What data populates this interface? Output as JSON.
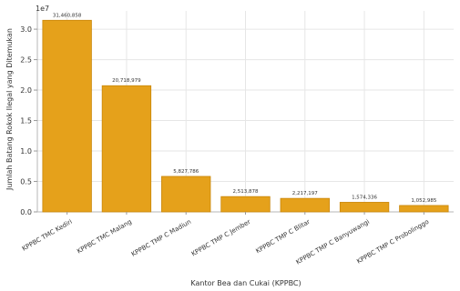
{
  "chart_data": {
    "type": "bar",
    "categories": [
      "KPPBC TMC Kediri",
      "KPPBC TMC Malang",
      "KPPBC TMP C Madiun",
      "KPPBC TMP C Jember",
      "KPPBC TMP C Blitar",
      "KPPBC TMP C Banyuwangi",
      "KPPBC TMP C Probolinggo"
    ],
    "values": [
      31460858,
      20718979,
      5827786,
      2513878,
      2217197,
      1574336,
      1052985
    ],
    "value_labels": [
      "31,460,858",
      "20,718,979",
      "5,827,786",
      "2,513,878",
      "2,217,197",
      "1,574,336",
      "1,052,985"
    ],
    "title": "",
    "xlabel": "Kantor Bea dan Cukai (KPPBC)",
    "ylabel": "Jumlah Batang Rokok Ilegal yang Ditemukan",
    "ylim": [
      0,
      33000000
    ],
    "yticks": [
      0,
      5000000,
      10000000,
      15000000,
      20000000,
      25000000,
      30000000
    ],
    "ytick_labels": [
      "0.0",
      "0.5",
      "1.0",
      "1.5",
      "2.0",
      "2.5",
      "3.0"
    ],
    "y_multiplier": "1e7",
    "grid": true,
    "bar_color": "#e5a11b",
    "bar_edge_color": "#c98609"
  }
}
